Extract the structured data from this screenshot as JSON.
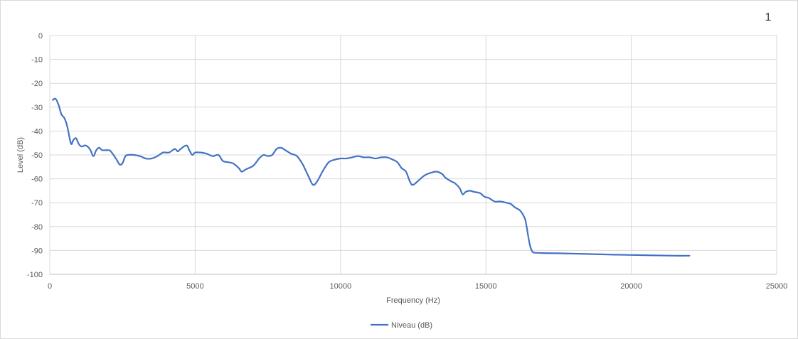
{
  "page_number": "1",
  "chart_data": {
    "type": "line",
    "title": "",
    "xlabel": "Frequency (Hz)",
    "ylabel": "Level (dB)",
    "xlim": [
      0,
      25000
    ],
    "ylim": [
      -100,
      0
    ],
    "x_ticks": [
      0,
      5000,
      10000,
      15000,
      20000,
      25000
    ],
    "y_ticks": [
      0,
      -10,
      -20,
      -30,
      -40,
      -50,
      -60,
      -70,
      -80,
      -90,
      -100
    ],
    "grid": true,
    "legend_position": "bottom",
    "series": [
      {
        "name": "Niveau (dB)",
        "color": "#4472c4",
        "points": [
          [
            100,
            -27
          ],
          [
            200,
            -26.5
          ],
          [
            300,
            -29
          ],
          [
            400,
            -33
          ],
          [
            500,
            -34.5
          ],
          [
            600,
            -38
          ],
          [
            700,
            -44
          ],
          [
            750,
            -45.5
          ],
          [
            800,
            -44
          ],
          [
            900,
            -43
          ],
          [
            1000,
            -45.5
          ],
          [
            1100,
            -46.5
          ],
          [
            1200,
            -46
          ],
          [
            1300,
            -46.5
          ],
          [
            1400,
            -48
          ],
          [
            1500,
            -50.5
          ],
          [
            1600,
            -48
          ],
          [
            1700,
            -47
          ],
          [
            1800,
            -48
          ],
          [
            2000,
            -48
          ],
          [
            2100,
            -48.5
          ],
          [
            2300,
            -52
          ],
          [
            2400,
            -54
          ],
          [
            2500,
            -53.5
          ],
          [
            2600,
            -50.5
          ],
          [
            2700,
            -50
          ],
          [
            2900,
            -50
          ],
          [
            3100,
            -50.5
          ],
          [
            3300,
            -51.5
          ],
          [
            3500,
            -51.5
          ],
          [
            3700,
            -50.5
          ],
          [
            3900,
            -49
          ],
          [
            4100,
            -49
          ],
          [
            4300,
            -47.5
          ],
          [
            4400,
            -48.5
          ],
          [
            4500,
            -47.5
          ],
          [
            4700,
            -46
          ],
          [
            4800,
            -48
          ],
          [
            4900,
            -50
          ],
          [
            5000,
            -49
          ],
          [
            5200,
            -49
          ],
          [
            5400,
            -49.5
          ],
          [
            5600,
            -50.5
          ],
          [
            5800,
            -50
          ],
          [
            5950,
            -52.5
          ],
          [
            6100,
            -53
          ],
          [
            6300,
            -53.5
          ],
          [
            6500,
            -55.5
          ],
          [
            6600,
            -57
          ],
          [
            6750,
            -56
          ],
          [
            7000,
            -54.5
          ],
          [
            7200,
            -51.5
          ],
          [
            7350,
            -50
          ],
          [
            7500,
            -50.5
          ],
          [
            7650,
            -50
          ],
          [
            7800,
            -47.5
          ],
          [
            7950,
            -47
          ],
          [
            8100,
            -48
          ],
          [
            8300,
            -49.5
          ],
          [
            8500,
            -50.5
          ],
          [
            8700,
            -54
          ],
          [
            8900,
            -59
          ],
          [
            9050,
            -62.5
          ],
          [
            9200,
            -61
          ],
          [
            9400,
            -56.5
          ],
          [
            9600,
            -53
          ],
          [
            9800,
            -52
          ],
          [
            10000,
            -51.5
          ],
          [
            10200,
            -51.5
          ],
          [
            10400,
            -51
          ],
          [
            10600,
            -50.5
          ],
          [
            10800,
            -51
          ],
          [
            11000,
            -51
          ],
          [
            11200,
            -51.5
          ],
          [
            11400,
            -51
          ],
          [
            11600,
            -51
          ],
          [
            11800,
            -52
          ],
          [
            11950,
            -53
          ],
          [
            12100,
            -55.5
          ],
          [
            12250,
            -57
          ],
          [
            12400,
            -61.5
          ],
          [
            12500,
            -62.5
          ],
          [
            12700,
            -60.5
          ],
          [
            12900,
            -58.5
          ],
          [
            13100,
            -57.5
          ],
          [
            13300,
            -57
          ],
          [
            13500,
            -58
          ],
          [
            13600,
            -59.5
          ],
          [
            13800,
            -61
          ],
          [
            13950,
            -62
          ],
          [
            14100,
            -64
          ],
          [
            14200,
            -66.5
          ],
          [
            14300,
            -65.5
          ],
          [
            14450,
            -65
          ],
          [
            14600,
            -65.5
          ],
          [
            14800,
            -66
          ],
          [
            14950,
            -67.5
          ],
          [
            15100,
            -68
          ],
          [
            15300,
            -69.5
          ],
          [
            15500,
            -69.5
          ],
          [
            15700,
            -70
          ],
          [
            15850,
            -70.5
          ],
          [
            16000,
            -72
          ],
          [
            16150,
            -73
          ],
          [
            16250,
            -74.5
          ],
          [
            16350,
            -77
          ],
          [
            16400,
            -80
          ],
          [
            16500,
            -87
          ],
          [
            16600,
            -90.5
          ],
          [
            16800,
            -91
          ],
          [
            17500,
            -91.2
          ],
          [
            18500,
            -91.5
          ],
          [
            19500,
            -91.8
          ],
          [
            20500,
            -92
          ],
          [
            21500,
            -92.2
          ],
          [
            22000,
            -92.2
          ]
        ]
      }
    ]
  }
}
